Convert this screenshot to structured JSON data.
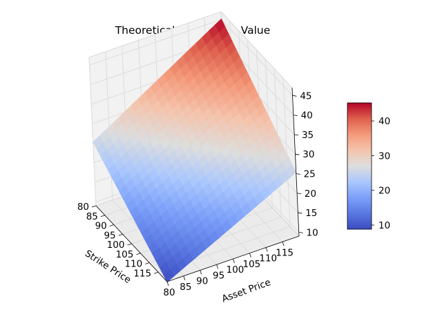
{
  "chart_data": {
    "type": "surface",
    "title": "Theoretical Call Option Value",
    "colormap": "coolwarm",
    "colormap_colors": {
      "low": "#3b4cc0",
      "mid": "#dddddd",
      "high": "#b40426"
    },
    "x": {
      "label": "Strike Price",
      "ticks": [
        "80",
        "85",
        "90",
        "95",
        "100",
        "105",
        "110",
        "115"
      ],
      "range": [
        80,
        120
      ]
    },
    "y": {
      "label": "Asset Price",
      "ticks": [
        "80",
        "85",
        "90",
        "95",
        "100",
        "105",
        "110",
        "115"
      ],
      "range": [
        80,
        120
      ]
    },
    "z": {
      "ticks": [
        "10",
        "15",
        "20",
        "25",
        "30",
        "35",
        "40",
        "45"
      ],
      "range": [
        9,
        47
      ]
    },
    "surface_corners": {
      "strike80_asset80": 25.3,
      "strike80_asset120": 45.2,
      "strike120_asset80": 8.9,
      "strike120_asset120": 25.3
    },
    "colorbar": {
      "ticks": [
        "10",
        "20",
        "30",
        "40"
      ],
      "range": [
        8.8,
        45.2
      ]
    },
    "grid": true
  }
}
